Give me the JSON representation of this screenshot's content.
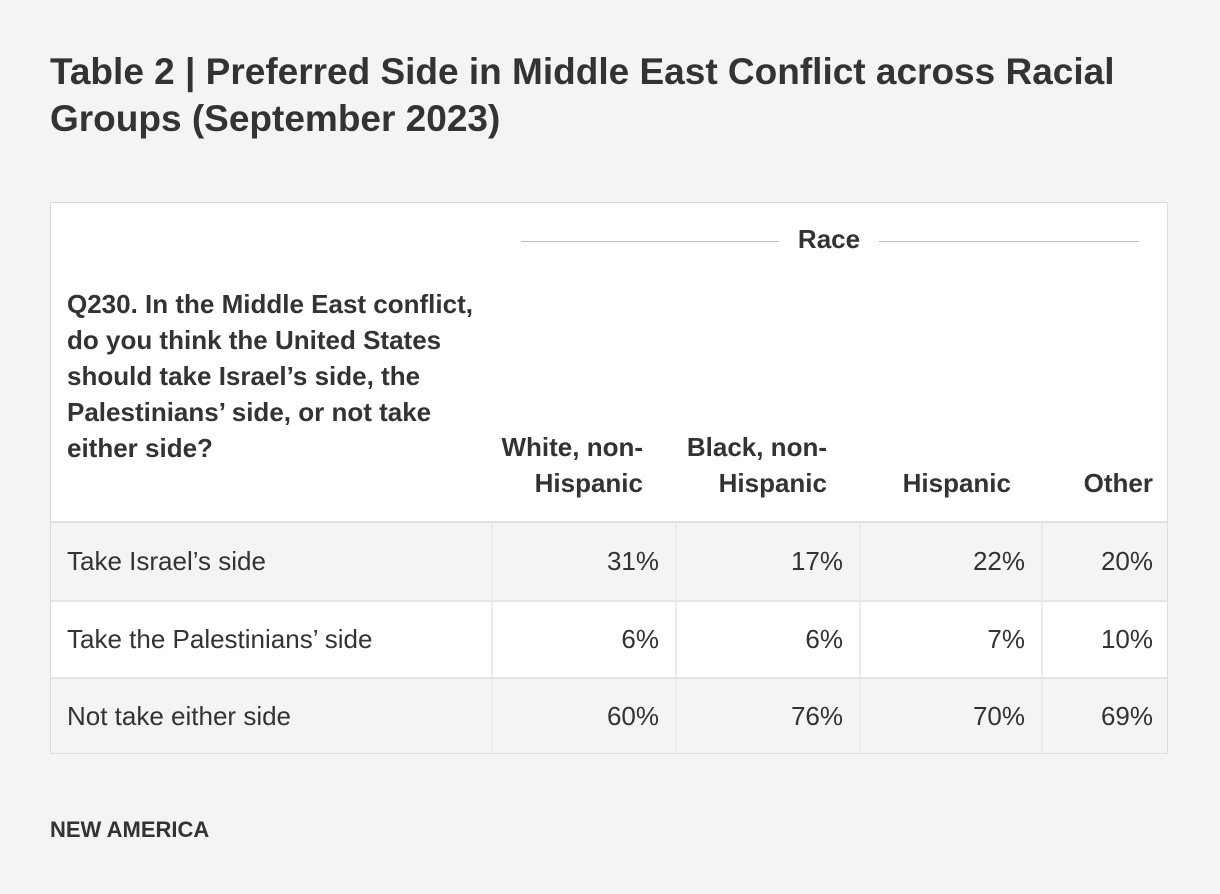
{
  "title": "Table 2 | Preferred Side in Middle East Conflict across Racial Groups (September 2023)",
  "source": "NEW AMERICA",
  "chart_data": {
    "type": "table",
    "title": "Table 2 | Preferred Side in Middle East Conflict across Racial Groups (September 2023)",
    "spanner": "Race",
    "question": "Q230. In the Middle East conflict, do you think the United States should take Israel’s side, the Palestinians’ side, or not take either side?",
    "columns": [
      "White, non-Hispanic",
      "Black, non-Hispanic",
      "Hispanic",
      "Other"
    ],
    "rows": [
      {
        "label": "Take Israel’s side",
        "values": [
          "31%",
          "17%",
          "22%",
          "20%"
        ]
      },
      {
        "label": "Take the Palestinians’ side",
        "values": [
          "6%",
          "6%",
          "7%",
          "10%"
        ]
      },
      {
        "label": "Not take either side",
        "values": [
          "60%",
          "76%",
          "70%",
          "69%"
        ]
      }
    ],
    "colors": {
      "background": "#f4f4f4",
      "table_background": "#ffffff",
      "striped_row": "#f4f4f4",
      "text": "#333333"
    }
  }
}
